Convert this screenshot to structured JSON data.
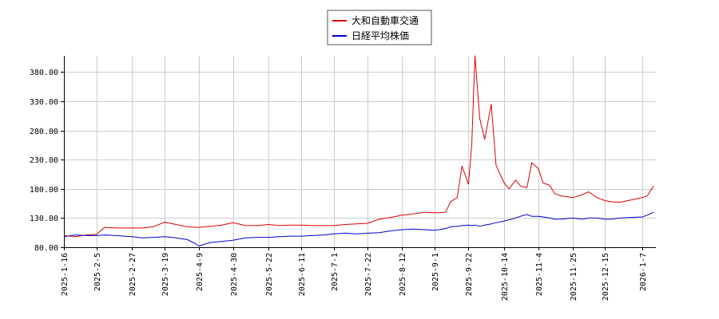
{
  "chart_data": {
    "type": "line",
    "title": "",
    "xlabel": "",
    "ylabel": "",
    "ylim": [
      80,
      408
    ],
    "y_ticks": [
      "80.00",
      "130.00",
      "180.00",
      "230.00",
      "280.00",
      "330.00",
      "380.00"
    ],
    "x_ticks": [
      "2025-1-16",
      "2025-2-5",
      "2025-2-27",
      "2025-3-19",
      "2025-4-9",
      "2025-4-30",
      "2025-5-22",
      "2025-6-11",
      "2025-7-1",
      "2025-7-22",
      "2025-8-12",
      "2025-9-1",
      "2025-9-22",
      "2025-10-14",
      "2025-11-4",
      "2025-11-25",
      "2025-12-15",
      "2026-1-7"
    ],
    "grid": true,
    "legend": "top-center",
    "x_points": [
      "2025-1-16",
      "2025-1-23",
      "2025-1-30",
      "2025-2-5",
      "2025-2-10",
      "2025-2-17",
      "2025-2-27",
      "2025-3-5",
      "2025-3-12",
      "2025-3-19",
      "2025-3-26",
      "2025-4-2",
      "2025-4-7",
      "2025-4-9",
      "2025-4-16",
      "2025-4-23",
      "2025-4-30",
      "2025-5-8",
      "2025-5-15",
      "2025-5-22",
      "2025-5-29",
      "2025-6-4",
      "2025-6-11",
      "2025-6-18",
      "2025-6-25",
      "2025-7-1",
      "2025-7-8",
      "2025-7-15",
      "2025-7-22",
      "2025-7-29",
      "2025-8-5",
      "2025-8-12",
      "2025-8-19",
      "2025-8-26",
      "2025-9-1",
      "2025-9-4",
      "2025-9-8",
      "2025-9-11",
      "2025-9-15",
      "2025-9-18",
      "2025-9-22",
      "2025-9-24",
      "2025-9-26",
      "2025-9-29",
      "2025-10-2",
      "2025-10-6",
      "2025-10-9",
      "2025-10-14",
      "2025-10-17",
      "2025-10-21",
      "2025-10-24",
      "2025-10-28",
      "2025-10-31",
      "2025-11-4",
      "2025-11-7",
      "2025-11-11",
      "2025-11-14",
      "2025-11-18",
      "2025-11-25",
      "2025-12-1",
      "2025-12-5",
      "2025-12-10",
      "2025-12-15",
      "2025-12-19",
      "2025-12-24",
      "2026-1-7",
      "2026-1-10",
      "2026-1-14"
    ],
    "series": [
      {
        "name": "大和自動車交通",
        "color": "#dd0000",
        "values": [
          100,
          98,
          101,
          102,
          114,
          113,
          113,
          113,
          115,
          123,
          119,
          115,
          114,
          114,
          116,
          118,
          122,
          117,
          117,
          119,
          117,
          118,
          118,
          117,
          117,
          117,
          119,
          120,
          121,
          128,
          131,
          135,
          137,
          140,
          139,
          139,
          140,
          158,
          165,
          219,
          188,
          255,
          410,
          300,
          265,
          325,
          220,
          190,
          180,
          195,
          185,
          182,
          225,
          215,
          190,
          186,
          172,
          168,
          165,
          170,
          175,
          165,
          160,
          158,
          157,
          165,
          168,
          185
        ],
        "labels": []
      },
      {
        "name": "日経平均株価",
        "color": "#0000cc",
        "values": [
          98,
          101,
          100,
          100,
          101,
          100,
          98,
          96,
          97,
          98,
          96,
          93,
          86,
          82,
          88,
          90,
          92,
          96,
          97,
          97,
          98,
          99,
          99,
          100,
          101,
          103,
          104,
          103,
          104,
          105,
          108,
          110,
          111,
          110,
          109,
          110,
          112,
          115,
          116,
          117,
          118,
          117,
          118,
          116,
          118,
          120,
          122,
          125,
          127,
          130,
          133,
          136,
          133,
          133,
          132,
          130,
          128,
          128,
          130,
          128,
          130,
          130,
          128,
          128,
          130,
          132,
          135,
          140
        ],
        "labels": []
      }
    ]
  }
}
